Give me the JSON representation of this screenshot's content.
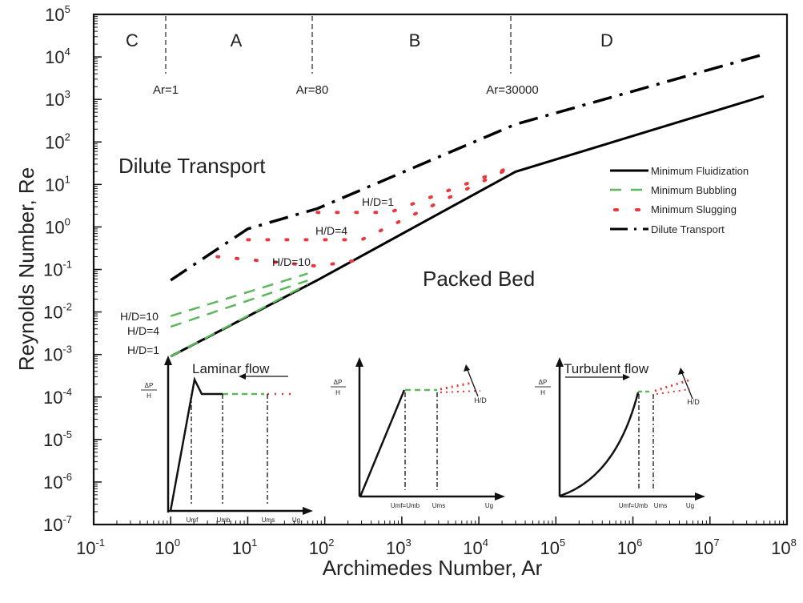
{
  "chart_data": {
    "type": "line",
    "title": "",
    "xlabel": "Archimedes Number, Ar",
    "ylabel": "Reynolds Number, Re",
    "xscale": "log",
    "yscale": "log",
    "xlim": [
      0.1,
      100000000
    ],
    "ylim": [
      1e-07,
      100000
    ],
    "xticks": [
      "10^-1",
      "10^0",
      "10^1",
      "10^2",
      "10^3",
      "10^4",
      "10^5",
      "10^6",
      "10^7",
      "10^8"
    ],
    "yticks": [
      "10^-7",
      "10^-6",
      "10^-5",
      "10^-4",
      "10^-3",
      "10^-2",
      "10^-1",
      "10^0",
      "10^1",
      "10^2",
      "10^3",
      "10^4",
      "10^5"
    ],
    "grid": false,
    "legend_position": "right-middle",
    "series": [
      {
        "name": "Minimum Fluidization",
        "style": "solid",
        "color": "#000000",
        "x": [
          1,
          80,
          30000,
          50000000
        ],
        "y": [
          0.0009,
          0.056,
          20,
          1200
        ]
      },
      {
        "name": "Minimum Bubbling",
        "label": "H/D=1",
        "style": "dashed",
        "color": "#5cb85c",
        "x": [
          1,
          60
        ],
        "y": [
          0.0009,
          0.045
        ]
      },
      {
        "name": "Minimum Bubbling",
        "label": "H/D=4",
        "style": "dashed",
        "color": "#5cb85c",
        "x": [
          1,
          60
        ],
        "y": [
          0.0045,
          0.055
        ]
      },
      {
        "name": "Minimum Bubbling",
        "label": "H/D=10",
        "style": "dashed",
        "color": "#5cb85c",
        "x": [
          1,
          60
        ],
        "y": [
          0.008,
          0.08
        ]
      },
      {
        "name": "Minimum Slugging",
        "label": "H/D=1",
        "style": "dotted",
        "color": "#e8383d",
        "x": [
          80,
          700,
          30000
        ],
        "y": [
          2.2,
          2.2,
          28
        ]
      },
      {
        "name": "Minimum Slugging",
        "label": "H/D=4",
        "style": "dotted",
        "color": "#e8383d",
        "x": [
          10,
          300,
          30000
        ],
        "y": [
          0.5,
          0.5,
          28
        ]
      },
      {
        "name": "Minimum Slugging",
        "label": "H/D=10",
        "style": "dotted",
        "color": "#e8383d",
        "x": [
          4,
          80,
          300
        ],
        "y": [
          0.2,
          0.12,
          0.17
        ]
      },
      {
        "name": "Dilute Transport",
        "style": "dash-dot",
        "color": "#000000",
        "x": [
          1,
          10,
          80,
          30000,
          50000000
        ],
        "y": [
          0.056,
          0.9,
          2.7,
          260,
          11500
        ]
      }
    ],
    "annotations": [
      {
        "text": "C",
        "x": 0.25,
        "y": 30000
      },
      {
        "text": "A",
        "x": 8,
        "y": 30000
      },
      {
        "text": "B",
        "x": 1500,
        "y": 30000
      },
      {
        "text": "D",
        "x": 1500000,
        "y": 30000
      },
      {
        "text": "Ar=1",
        "x": 1,
        "y": 1500
      },
      {
        "text": "Ar=80",
        "x": 80,
        "y": 1500
      },
      {
        "text": "Ar=30000",
        "x": 30000,
        "y": 1500
      },
      {
        "text": "Dilute Transport",
        "x": 0.5,
        "y": 15
      },
      {
        "text": "Packed Bed",
        "x": 2000,
        "y": 0.1
      }
    ],
    "vertical_markers": [
      1,
      80,
      30000
    ]
  },
  "labels": {
    "x_axis": "Archimedes Number, Ar",
    "y_axis": "Reynolds Number, Re",
    "regions": {
      "c": "C",
      "a": "A",
      "b": "B",
      "d": "D"
    },
    "markers": {
      "ar1": "Ar=1",
      "ar80": "Ar=80",
      "ar30000": "Ar=30000"
    },
    "dilute_transport": "Dilute Transport",
    "packed_bed": "Packed Bed",
    "hd1": "H/D=1",
    "hd4": "H/D=4",
    "hd10": "H/D=10"
  },
  "legend": [
    {
      "label": "Minimum Fluidization"
    },
    {
      "label": "Minimum Bubbling"
    },
    {
      "label": "Minimum Slugging"
    },
    {
      "label": "Dilute Transport"
    }
  ],
  "insets": {
    "laminar": {
      "title": "Laminar flow",
      "ylabel_top": "ΔP",
      "ylabel_bottom": "H",
      "x_labels": [
        "Umf",
        "Umb",
        "Ums",
        "Ug"
      ]
    },
    "intermediate": {
      "ylabel_top": "ΔP",
      "ylabel_bottom": "H",
      "hd": "H/D",
      "x_labels": [
        "Umf=Umb",
        "Ums",
        "Ug"
      ]
    },
    "turbulent": {
      "title": "Turbulent flow",
      "ylabel_top": "ΔP",
      "ylabel_bottom": "H",
      "hd": "H/D",
      "x_labels": [
        "Umf=Umb",
        "Ums",
        "Ug"
      ]
    }
  },
  "colors": {
    "bubbling": "#5cb85c",
    "slugging": "#e8383d",
    "axis": "#111111"
  }
}
